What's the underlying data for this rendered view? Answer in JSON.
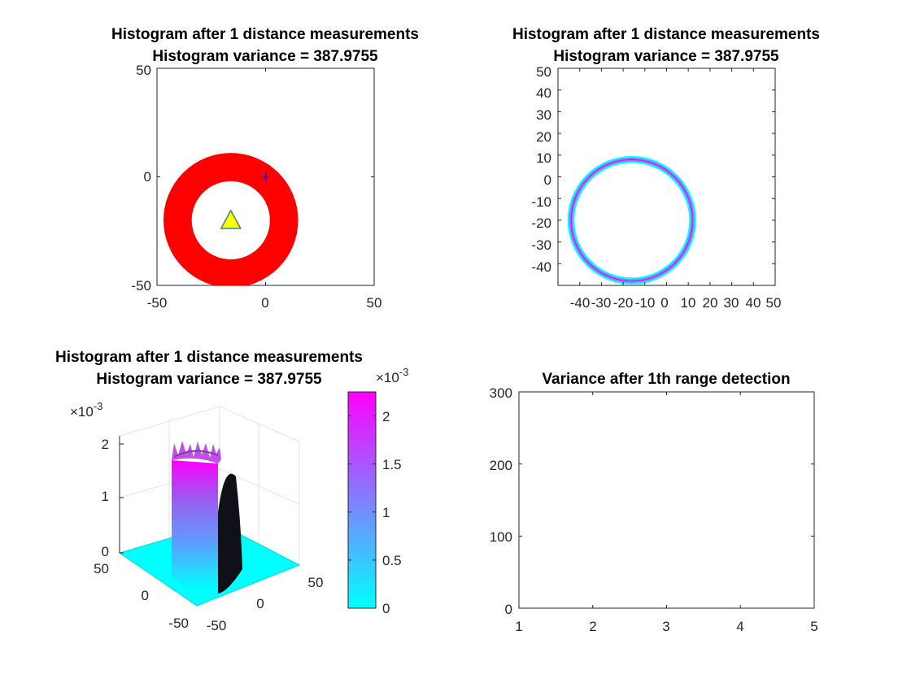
{
  "colors": {
    "ring": "#ff0000",
    "marker_triangle": "#ffff00",
    "marker_triangle_edge": "#3a8a6e",
    "origin_marker": "#0000ff",
    "contour_outer": "#00ffff",
    "contour_mid": "#5a9bff",
    "contour_inner": "#ff00ff",
    "colormap_low": "#00ffff",
    "colormap_high": "#ff00ff",
    "shadow": "#101018"
  },
  "chart_data": [
    {
      "id": "top-left",
      "type": "scatter",
      "title": "Histogram after 1  distance measurements",
      "subtitle": "Histogram variance = 387.9755",
      "xlim": [
        -50,
        50
      ],
      "ylim": [
        -50,
        50
      ],
      "xticks": [
        "-50",
        "0",
        "50"
      ],
      "yticks": [
        "50",
        "0",
        "-50"
      ],
      "ring": {
        "center": [
          -16,
          -20
        ],
        "inner_radius": 18,
        "outer_radius": 31
      },
      "markers": [
        {
          "shape": "triangle",
          "x": -16,
          "y": -20
        },
        {
          "shape": "plus",
          "x": 0,
          "y": 0
        }
      ]
    },
    {
      "id": "top-right",
      "type": "contour",
      "title": "Histogram after 1  distance measurements",
      "subtitle": "Histogram variance = 387.9755",
      "xlim": [
        -50,
        50
      ],
      "ylim": [
        -50,
        50
      ],
      "xticks": [
        "-40",
        "-30",
        "-20",
        "-10",
        "0",
        "10",
        "20",
        "30",
        "40",
        "50"
      ],
      "yticks": [
        "50",
        "40",
        "30",
        "20",
        "10",
        "0",
        "-10",
        "-20",
        "-30",
        "-40"
      ],
      "ring": {
        "center": [
          -16,
          -20
        ],
        "radius": 28
      }
    },
    {
      "id": "bottom-left",
      "type": "surface",
      "title": "Histogram after 1  distance measurements",
      "subtitle": "Histogram variance = 387.9755",
      "z_exponent": "×10",
      "z_exponent_power": "-3",
      "zticks": [
        "2",
        "1",
        "0"
      ],
      "xticks": [
        "-50",
        "0",
        "50"
      ],
      "yticks": [
        "50",
        "0",
        "-50"
      ],
      "zlim": [
        0,
        0.0022
      ],
      "colorbar": {
        "exponent": "×10",
        "exponent_power": "-3",
        "ticks": [
          "2",
          "1.5",
          "1",
          "0.5",
          "0"
        ],
        "range": [
          0,
          0.00225
        ]
      }
    },
    {
      "id": "bottom-right",
      "type": "line",
      "title": "Variance after 1th  range detection",
      "xlim": [
        1,
        5
      ],
      "ylim": [
        0,
        300
      ],
      "xticks": [
        "1",
        "2",
        "3",
        "4",
        "5"
      ],
      "yticks": [
        "300",
        "200",
        "100",
        "0"
      ],
      "series": []
    }
  ]
}
